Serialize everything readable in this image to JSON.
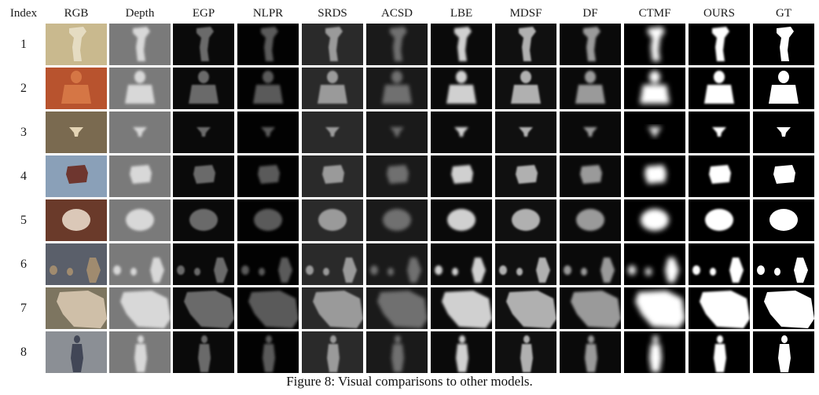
{
  "figure": {
    "columns": [
      "Index",
      "RGB",
      "Depth",
      "EGP",
      "NLPR",
      "SRDS",
      "ACSD",
      "LBE",
      "MDSF",
      "DF",
      "CTMF",
      "OURS",
      "GT"
    ],
    "rows": [
      "1",
      "2",
      "3",
      "4",
      "5",
      "6",
      "7",
      "8"
    ],
    "caption": "Figure 8: Visual comparisons to other models."
  }
}
